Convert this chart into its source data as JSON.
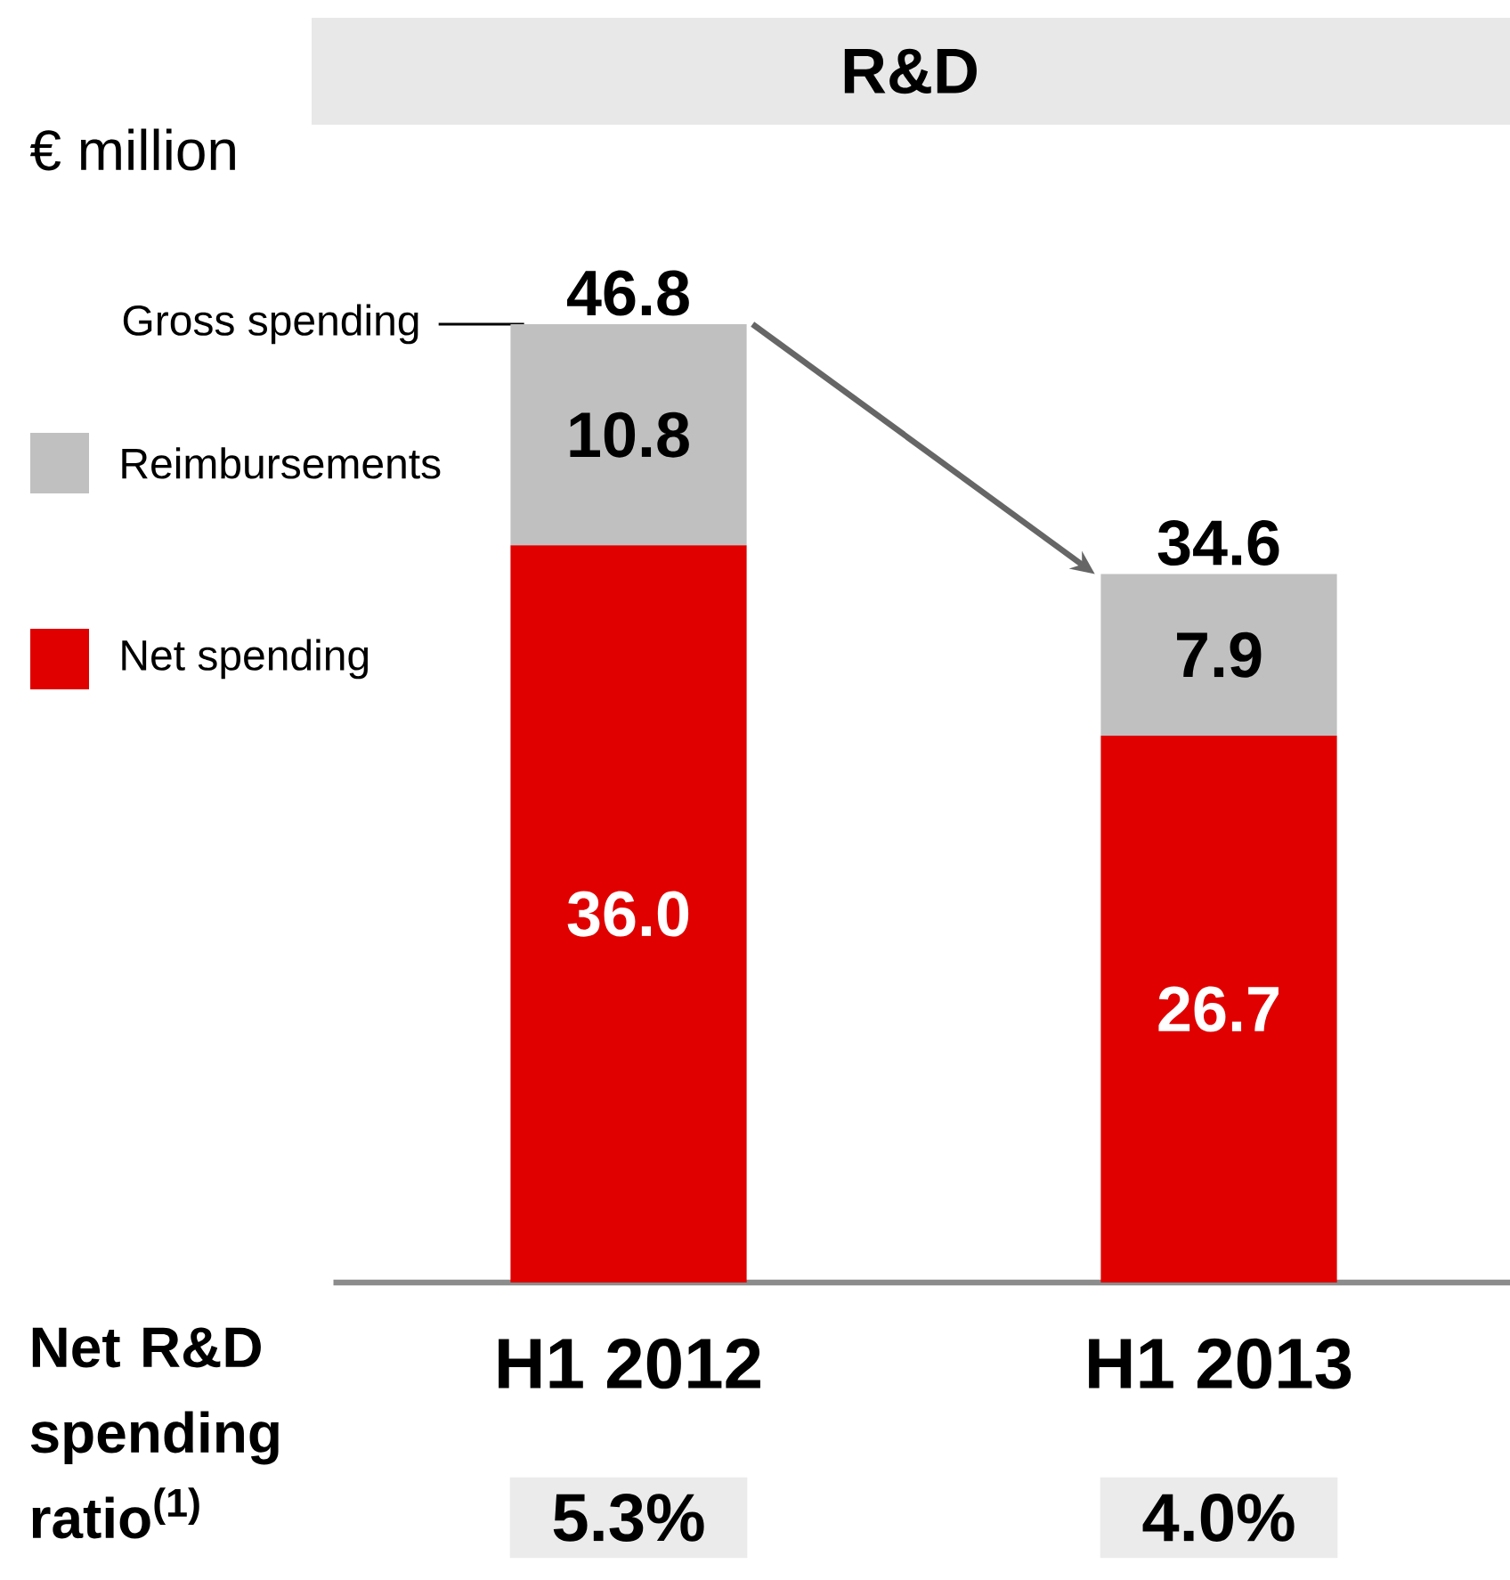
{
  "chart_data": {
    "type": "bar",
    "title": "R&D",
    "ylabel": "€ million",
    "categories": [
      "H1 2012",
      "H1 2013"
    ],
    "stacked": true,
    "legend": "left",
    "series": [
      {
        "name": "Net spending",
        "color": "#e00000",
        "values": [
          36.0,
          26.7
        ],
        "value_labels": [
          "36.0",
          "26.7"
        ]
      },
      {
        "name": "Reimbursements",
        "color": "#c0c0c0",
        "values": [
          10.8,
          7.9
        ],
        "value_labels": [
          "10.8",
          "7.9"
        ]
      }
    ],
    "totals": [
      "46.8",
      "34.6"
    ],
    "annotations": [
      "Gross spending",
      "Net R&D spending ratio$^{(1)}$",
      "5.3%",
      "4.0%"
    ]
  }
}
